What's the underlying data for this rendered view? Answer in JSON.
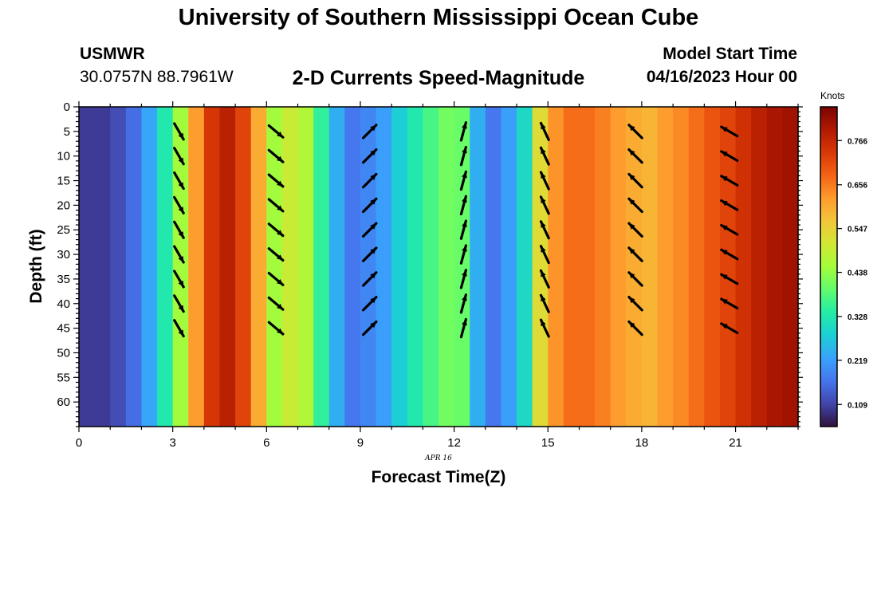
{
  "header": {
    "title": "University of Southern Mississippi Ocean Cube",
    "station": "USMWR",
    "coords": "30.0757N  88.7961W",
    "subtitle": "2-D Currents Speed-Magnitude",
    "start_label": "Model Start Time",
    "start_value": "04/16/2023 Hour 00"
  },
  "footer": {
    "title": "University of Southern Mississippi Ocean Cube"
  },
  "chart_data": {
    "type": "heatmap",
    "title": "2-D Currents Speed-Magnitude",
    "xlabel": "Forecast Time(Z)",
    "ylabel": "Depth (ft)",
    "date_label": "APR 16",
    "xlim": [
      0,
      23
    ],
    "ylim": [
      0,
      65
    ],
    "xticks": [
      0,
      3,
      6,
      9,
      12,
      15,
      18,
      21
    ],
    "yticks": [
      0,
      5,
      10,
      15,
      20,
      25,
      30,
      35,
      40,
      45,
      50,
      55,
      60
    ],
    "colorbar": {
      "label": "Knots",
      "min": 0.054,
      "max": 0.85,
      "ticks": [
        "0.766",
        "0.656",
        "0.547",
        "0.438",
        "0.328",
        "0.219",
        "0.109"
      ]
    },
    "speed_by_hour": [
      {
        "hour": 0.25,
        "speed": 0.1
      },
      {
        "hour": 0.75,
        "speed": 0.1
      },
      {
        "hour": 1.25,
        "speed": 0.12
      },
      {
        "hour": 1.75,
        "speed": 0.16
      },
      {
        "hour": 2.25,
        "speed": 0.23
      },
      {
        "hour": 2.75,
        "speed": 0.33
      },
      {
        "hour": 3.25,
        "speed": 0.45
      },
      {
        "hour": 3.75,
        "speed": 0.62
      },
      {
        "hour": 4.25,
        "speed": 0.74
      },
      {
        "hour": 4.75,
        "speed": 0.78
      },
      {
        "hour": 5.25,
        "speed": 0.72
      },
      {
        "hour": 5.75,
        "speed": 0.6
      },
      {
        "hour": 6.25,
        "speed": 0.45
      },
      {
        "hour": 6.75,
        "speed": 0.5
      },
      {
        "hour": 7.25,
        "speed": 0.47
      },
      {
        "hour": 7.75,
        "speed": 0.35
      },
      {
        "hour": 8.25,
        "speed": 0.24
      },
      {
        "hour": 8.75,
        "speed": 0.17
      },
      {
        "hour": 9.25,
        "speed": 0.19
      },
      {
        "hour": 9.75,
        "speed": 0.22
      },
      {
        "hour": 10.25,
        "speed": 0.28
      },
      {
        "hour": 10.75,
        "speed": 0.33
      },
      {
        "hour": 11.25,
        "speed": 0.37
      },
      {
        "hour": 11.75,
        "speed": 0.41
      },
      {
        "hour": 12.25,
        "speed": 0.4
      },
      {
        "hour": 12.75,
        "speed": 0.24
      },
      {
        "hour": 13.25,
        "speed": 0.17
      },
      {
        "hour": 13.75,
        "speed": 0.22
      },
      {
        "hour": 14.25,
        "speed": 0.3
      },
      {
        "hour": 14.75,
        "speed": 0.53
      },
      {
        "hour": 15.25,
        "speed": 0.63
      },
      {
        "hour": 15.75,
        "speed": 0.67
      },
      {
        "hour": 16.25,
        "speed": 0.67
      },
      {
        "hour": 16.75,
        "speed": 0.65
      },
      {
        "hour": 17.25,
        "speed": 0.62
      },
      {
        "hour": 17.75,
        "speed": 0.6
      },
      {
        "hour": 18.25,
        "speed": 0.59
      },
      {
        "hour": 18.75,
        "speed": 0.62
      },
      {
        "hour": 19.25,
        "speed": 0.64
      },
      {
        "hour": 19.75,
        "speed": 0.67
      },
      {
        "hour": 20.25,
        "speed": 0.7
      },
      {
        "hour": 20.75,
        "speed": 0.72
      },
      {
        "hour": 21.25,
        "speed": 0.75
      },
      {
        "hour": 21.75,
        "speed": 0.78
      },
      {
        "hour": 22.25,
        "speed": 0.8
      },
      {
        "hour": 22.75,
        "speed": 0.81
      }
    ],
    "vectors": [
      {
        "hour": 3.2,
        "depths": [
          5,
          10,
          15,
          20,
          25,
          30,
          35,
          40,
          45
        ],
        "direction_deg": 150
      },
      {
        "hour": 6.3,
        "depths": [
          5,
          10,
          15,
          20,
          25,
          30,
          35,
          40,
          45
        ],
        "direction_deg": 130
      },
      {
        "hour": 9.3,
        "depths": [
          5,
          10,
          15,
          20,
          25,
          30,
          35,
          40,
          45
        ],
        "direction_deg": 45
      },
      {
        "hour": 12.3,
        "depths": [
          5,
          10,
          15,
          20,
          25,
          30,
          35,
          40,
          45
        ],
        "direction_deg": 15
      },
      {
        "hour": 14.9,
        "depths": [
          5,
          10,
          15,
          20,
          25,
          30,
          35,
          40,
          45
        ],
        "direction_deg": 335
      },
      {
        "hour": 17.8,
        "depths": [
          5,
          10,
          15,
          20,
          25,
          30,
          35,
          40,
          45
        ],
        "direction_deg": 315
      },
      {
        "hour": 20.8,
        "depths": [
          5,
          10,
          15,
          20,
          25,
          30,
          35,
          40,
          45
        ],
        "direction_deg": 300
      }
    ]
  },
  "colors": {
    "palette": [
      "#30123b",
      "#4145ab",
      "#4675ed",
      "#39a2fc",
      "#1bcfd4",
      "#24eca6",
      "#61fc6c",
      "#a4fc3b",
      "#d1e834",
      "#f3c63a",
      "#fe9b2d",
      "#f36315",
      "#d93806",
      "#b11901",
      "#7a0402"
    ],
    "arrow": "#000000"
  }
}
